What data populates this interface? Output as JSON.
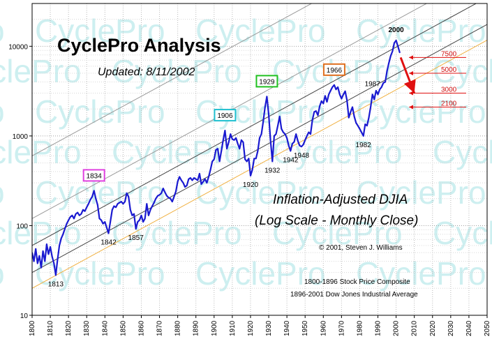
{
  "chart_data": {
    "type": "line",
    "title": "CyclePro Analysis",
    "subtitle": "Updated: 8/11/2002",
    "main_label_1": "Inflation-Adjusted DJIA",
    "main_label_2": "(Log Scale - Monthly Close)",
    "copyright": "© 2001, Steven J. Williams",
    "source_1": "1800-1896 Stock Price Composite",
    "source_2": "1896-2001 Dow Jones Industrial Average",
    "watermark": "CyclePro",
    "y_scale": "log",
    "ylim": [
      10,
      30000
    ],
    "xlim": [
      1800,
      2050
    ],
    "x_ticks": [
      1800,
      1810,
      1820,
      1830,
      1840,
      1850,
      1860,
      1870,
      1880,
      1890,
      1900,
      1910,
      1920,
      1930,
      1940,
      1950,
      1960,
      1970,
      1980,
      1990,
      2000,
      2010,
      2020,
      2030,
      2040,
      2050
    ],
    "x_tick_labels": [
      "1800",
      "1810",
      "1820",
      "1830",
      "1840",
      "1850",
      "1860",
      "1870",
      "1880",
      "1890",
      "1900",
      "1910",
      "1920",
      "1930",
      "1940",
      "1950",
      "1960",
      "1970",
      "1980",
      "1990",
      "2000",
      "2010",
      "2020",
      "2030",
      "2040",
      "2050"
    ],
    "y_ticks": [
      10,
      100,
      1000,
      10000
    ],
    "y_tick_labels": [
      "10",
      "100",
      "1000",
      "10000"
    ],
    "series": [
      {
        "color": "#1a1ad0",
        "points": [
          [
            1800,
            50
          ],
          [
            1801,
            40
          ],
          [
            1802,
            55
          ],
          [
            1803,
            38
          ],
          [
            1804,
            46
          ],
          [
            1805,
            34
          ],
          [
            1806,
            52
          ],
          [
            1807,
            40
          ],
          [
            1808,
            62
          ],
          [
            1809,
            48
          ],
          [
            1810,
            58
          ],
          [
            1811,
            45
          ],
          [
            1812,
            38
          ],
          [
            1813,
            28
          ],
          [
            1814,
            42
          ],
          [
            1815,
            60
          ],
          [
            1816,
            72
          ],
          [
            1817,
            80
          ],
          [
            1818,
            92
          ],
          [
            1819,
            105
          ],
          [
            1820,
            115
          ],
          [
            1821,
            125
          ],
          [
            1822,
            130
          ],
          [
            1823,
            120
          ],
          [
            1824,
            135
          ],
          [
            1825,
            140
          ],
          [
            1826,
            130
          ],
          [
            1827,
            135
          ],
          [
            1828,
            150
          ],
          [
            1829,
            145
          ],
          [
            1830,
            160
          ],
          [
            1831,
            175
          ],
          [
            1832,
            195
          ],
          [
            1833,
            210
          ],
          [
            1834,
            245
          ],
          [
            1835,
            200
          ],
          [
            1836,
            170
          ],
          [
            1837,
            120
          ],
          [
            1838,
            115
          ],
          [
            1839,
            105
          ],
          [
            1840,
            110
          ],
          [
            1841,
            95
          ],
          [
            1842,
            82
          ],
          [
            1843,
            110
          ],
          [
            1844,
            150
          ],
          [
            1845,
            165
          ],
          [
            1846,
            160
          ],
          [
            1847,
            175
          ],
          [
            1848,
            180
          ],
          [
            1849,
            185
          ],
          [
            1850,
            175
          ],
          [
            1851,
            185
          ],
          [
            1852,
            230
          ],
          [
            1853,
            210
          ],
          [
            1854,
            150
          ],
          [
            1855,
            130
          ],
          [
            1856,
            135
          ],
          [
            1857,
            92
          ],
          [
            1858,
            110
          ],
          [
            1859,
            115
          ],
          [
            1860,
            130
          ],
          [
            1861,
            110
          ],
          [
            1862,
            120
          ],
          [
            1863,
            175
          ],
          [
            1864,
            130
          ],
          [
            1865,
            150
          ],
          [
            1866,
            165
          ],
          [
            1867,
            180
          ],
          [
            1868,
            200
          ],
          [
            1869,
            215
          ],
          [
            1870,
            220
          ],
          [
            1871,
            230
          ],
          [
            1872,
            260
          ],
          [
            1873,
            235
          ],
          [
            1874,
            215
          ],
          [
            1875,
            205
          ],
          [
            1876,
            200
          ],
          [
            1877,
            185
          ],
          [
            1878,
            210
          ],
          [
            1879,
            240
          ],
          [
            1880,
            310
          ],
          [
            1881,
            350
          ],
          [
            1882,
            320
          ],
          [
            1883,
            300
          ],
          [
            1884,
            270
          ],
          [
            1885,
            280
          ],
          [
            1886,
            330
          ],
          [
            1887,
            340
          ],
          [
            1888,
            320
          ],
          [
            1889,
            340
          ],
          [
            1890,
            330
          ],
          [
            1891,
            320
          ],
          [
            1892,
            380
          ],
          [
            1893,
            290
          ],
          [
            1894,
            310
          ],
          [
            1895,
            330
          ],
          [
            1896,
            300
          ],
          [
            1897,
            350
          ],
          [
            1898,
            420
          ],
          [
            1899,
            520
          ],
          [
            1900,
            550
          ],
          [
            1901,
            700
          ],
          [
            1902,
            720
          ],
          [
            1903,
            520
          ],
          [
            1904,
            680
          ],
          [
            1905,
            900
          ],
          [
            1906,
            1150
          ],
          [
            1907,
            720
          ],
          [
            1908,
            850
          ],
          [
            1909,
            1050
          ],
          [
            1910,
            920
          ],
          [
            1911,
            900
          ],
          [
            1912,
            950
          ],
          [
            1913,
            820
          ],
          [
            1914,
            720
          ],
          [
            1915,
            900
          ],
          [
            1916,
            850
          ],
          [
            1917,
            550
          ],
          [
            1918,
            520
          ],
          [
            1919,
            560
          ],
          [
            1920,
            360
          ],
          [
            1921,
            420
          ],
          [
            1922,
            560
          ],
          [
            1923,
            560
          ],
          [
            1924,
            680
          ],
          [
            1925,
            950
          ],
          [
            1926,
            1050
          ],
          [
            1927,
            1450
          ],
          [
            1928,
            2100
          ],
          [
            1929,
            2750
          ],
          [
            1930,
            1750
          ],
          [
            1931,
            900
          ],
          [
            1932,
            520
          ],
          [
            1933,
            1000
          ],
          [
            1934,
            1050
          ],
          [
            1935,
            1300
          ],
          [
            1936,
            1650
          ],
          [
            1937,
            1200
          ],
          [
            1938,
            1100
          ],
          [
            1939,
            1050
          ],
          [
            1940,
            950
          ],
          [
            1941,
            780
          ],
          [
            1942,
            680
          ],
          [
            1943,
            820
          ],
          [
            1944,
            860
          ],
          [
            1945,
            1050
          ],
          [
            1946,
            880
          ],
          [
            1947,
            780
          ],
          [
            1948,
            760
          ],
          [
            1949,
            800
          ],
          [
            1950,
            900
          ],
          [
            1951,
            1000
          ],
          [
            1952,
            1100
          ],
          [
            1953,
            1050
          ],
          [
            1954,
            1500
          ],
          [
            1955,
            1850
          ],
          [
            1956,
            1900
          ],
          [
            1957,
            1700
          ],
          [
            1958,
            2150
          ],
          [
            1959,
            2450
          ],
          [
            1960,
            2300
          ],
          [
            1961,
            2800
          ],
          [
            1962,
            2400
          ],
          [
            1963,
            2900
          ],
          [
            1964,
            3200
          ],
          [
            1965,
            3500
          ],
          [
            1966,
            3700
          ],
          [
            1967,
            3300
          ],
          [
            1968,
            3500
          ],
          [
            1969,
            2900
          ],
          [
            1970,
            2600
          ],
          [
            1971,
            2900
          ],
          [
            1972,
            3150
          ],
          [
            1973,
            2500
          ],
          [
            1974,
            1600
          ],
          [
            1975,
            1850
          ],
          [
            1976,
            2100
          ],
          [
            1977,
            1650
          ],
          [
            1978,
            1400
          ],
          [
            1979,
            1300
          ],
          [
            1980,
            1200
          ],
          [
            1981,
            1100
          ],
          [
            1982,
            1000
          ],
          [
            1983,
            1350
          ],
          [
            1984,
            1300
          ],
          [
            1985,
            1600
          ],
          [
            1986,
            2100
          ],
          [
            1987,
            2900
          ],
          [
            1988,
            2550
          ],
          [
            1989,
            3200
          ],
          [
            1990,
            2900
          ],
          [
            1991,
            3300
          ],
          [
            1992,
            3500
          ],
          [
            1993,
            3900
          ],
          [
            1994,
            4000
          ],
          [
            1995,
            5300
          ],
          [
            1996,
            6500
          ],
          [
            1997,
            7800
          ],
          [
            1998,
            8800
          ],
          [
            1999,
            10900
          ],
          [
            2000,
            11600
          ],
          [
            2001,
            10000
          ],
          [
            2002,
            8500
          ]
        ]
      }
    ],
    "channel_lines": [
      {
        "color": "#444444",
        "points": [
          [
            1800,
            60
          ],
          [
            2050,
            35000
          ]
        ]
      },
      {
        "color": "#444444",
        "points": [
          [
            1800,
            30
          ],
          [
            2050,
            17500
          ]
        ]
      },
      {
        "color": "#999999",
        "points": [
          [
            1800,
            120
          ],
          [
            2050,
            70000
          ]
        ]
      },
      {
        "color": "#999999",
        "points": [
          [
            1800,
            600
          ],
          [
            2050,
            350000
          ]
        ]
      },
      {
        "color": "#f0b040",
        "points": [
          [
            1800,
            20
          ],
          [
            2050,
            11700
          ]
        ]
      }
    ],
    "projection": {
      "color": "#e01010",
      "points": [
        [
          2002.5,
          7500
        ],
        [
          2010,
          3000
        ]
      ]
    },
    "targets": [
      {
        "label": "7500",
        "value": 7500
      },
      {
        "label": "5000",
        "value": 5000
      },
      {
        "label": "3000",
        "value": 3000
      },
      {
        "label": "2100",
        "value": 2100
      }
    ],
    "peak_labels": [
      {
        "label": "1834",
        "x": 1834,
        "y": 245,
        "box_color": "#e040e0"
      },
      {
        "label": "1906",
        "x": 1906,
        "y": 1150,
        "box_color": "#20c0d0"
      },
      {
        "label": "1929",
        "x": 1929,
        "y": 2750,
        "box_color": "#20c020"
      },
      {
        "label": "1966",
        "x": 1966,
        "y": 3700,
        "box_color": "#e07020"
      },
      {
        "label": "1987",
        "x": 1987,
        "y": 2900,
        "color": "#b0b0b0"
      },
      {
        "label": "2000",
        "x": 2000,
        "y": 11600,
        "bold": true
      }
    ],
    "trough_labels": [
      {
        "label": "1813",
        "x": 1813,
        "y": 28
      },
      {
        "label": "1842",
        "x": 1842,
        "y": 82
      },
      {
        "label": "1857",
        "x": 1857,
        "y": 92
      },
      {
        "label": "1920",
        "x": 1920,
        "y": 360
      },
      {
        "label": "1932",
        "x": 1932,
        "y": 520
      },
      {
        "label": "1942",
        "x": 1942,
        "y": 680
      },
      {
        "label": "1948",
        "x": 1948,
        "y": 760
      },
      {
        "label": "1982",
        "x": 1982,
        "y": 1000
      }
    ],
    "grid": true
  }
}
